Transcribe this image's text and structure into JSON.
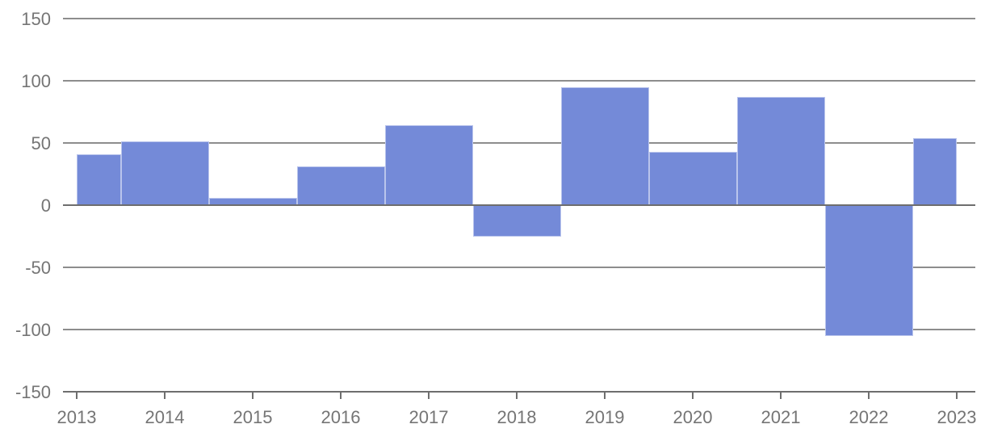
{
  "chart_data": {
    "type": "bar",
    "variant": "stepped-area",
    "title": "",
    "xlabel": "",
    "ylabel": "",
    "categories": [
      "2013",
      "2014",
      "2015",
      "2016",
      "2017",
      "2018",
      "2019",
      "2020",
      "2021",
      "2022",
      "2023"
    ],
    "values": [
      41,
      51,
      6,
      31,
      64,
      -25,
      95,
      43,
      87,
      -105,
      54
    ],
    "series": [
      {
        "name": "",
        "values": [
          41,
          51,
          6,
          31,
          64,
          -25,
          95,
          43,
          87,
          -105,
          54
        ]
      }
    ],
    "ylim": [
      -150,
      150
    ],
    "ytick_interval": 50,
    "yticks": [
      150,
      100,
      50,
      0,
      -50,
      -100,
      -150
    ],
    "ytick_labels": [
      "150",
      "100",
      "50",
      "0",
      "-50",
      "-100",
      "-150"
    ],
    "grid": true,
    "legend": "none",
    "layout_hints": {
      "bars_contiguous": true,
      "first_and_last_column_half_width": true,
      "zero_baseline_emphasized": true
    },
    "colors": {
      "background": "#ffffff",
      "bar_fill": "#748ad8",
      "bar_stroke": "rgba(255,255,255,0.5)",
      "gridline": "#8d8d8d",
      "baseline": "#6e6e6e",
      "axis_line": "#6e6e6e",
      "tick_mark": "#6e6e6e",
      "label_text": "#757575"
    }
  }
}
